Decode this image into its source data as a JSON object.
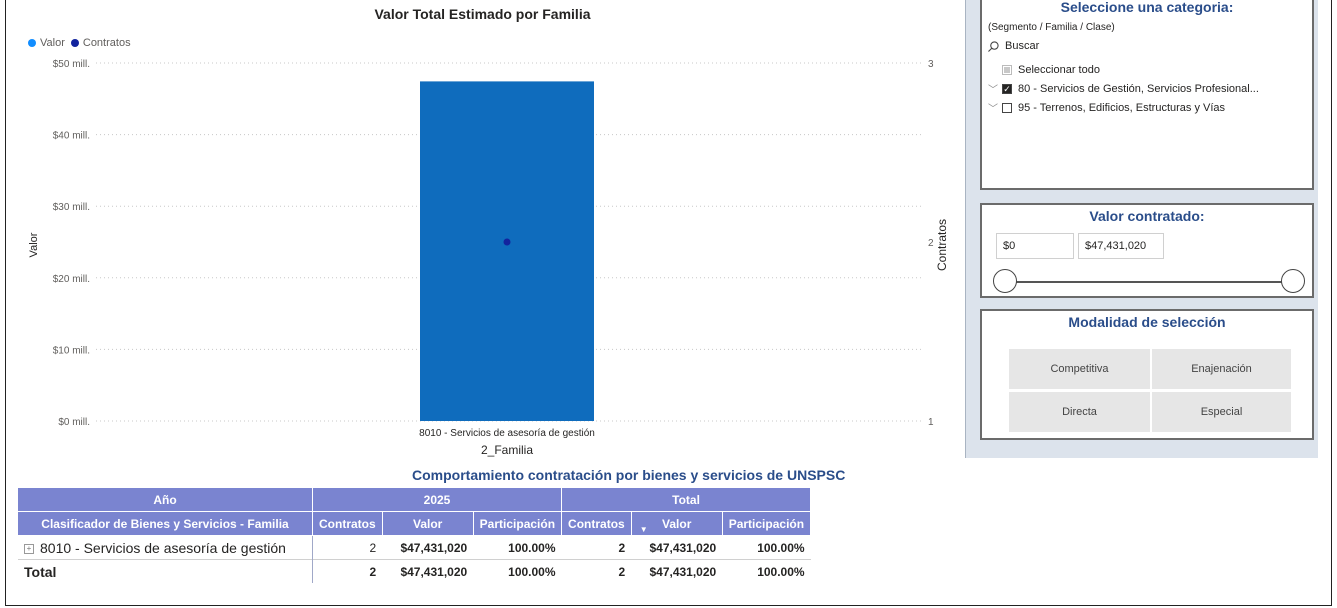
{
  "chart": {
    "title": "Valor Total Estimado por Familia",
    "legend": [
      {
        "label": "Valor",
        "color": "#118DFF"
      },
      {
        "label": "Contratos",
        "color": "#12239E"
      }
    ],
    "ylabel_left": "Valor",
    "ylabel_right": "Contratos",
    "xlabel": "2_Familia"
  },
  "chart_data": {
    "type": "bar",
    "title": "Valor Total Estimado por Familia",
    "xlabel": "2_Familia",
    "ylabel": "Valor",
    "y2label": "Contratos",
    "categories": [
      "8010 - Servicios de asesoría de gestión"
    ],
    "series": [
      {
        "name": "Valor",
        "type": "bar",
        "values": [
          47431020
        ],
        "color": "#0F6CBD"
      },
      {
        "name": "Contratos",
        "type": "scatter",
        "axis": "right",
        "values": [
          2
        ],
        "color": "#12239E"
      }
    ],
    "ylim": [
      0,
      50000000
    ],
    "y2lim": [
      1,
      3
    ],
    "yticks": [
      "$0 mill.",
      "$10 mill.",
      "$20 mill.",
      "$30 mill.",
      "$40 mill.",
      "$50 mill."
    ],
    "y2ticks": [
      "1",
      "2",
      "3"
    ],
    "grid": true,
    "legend_position": "top-left"
  },
  "category_filter": {
    "title": "Seleccione una categoria:",
    "subtitle": "(Segmento / Familia / Clase)",
    "search_placeholder": "Buscar",
    "items": [
      {
        "label": "Seleccionar todo",
        "state": "partial"
      },
      {
        "label": "80 - Servicios de Gestión, Servicios Profesional...",
        "state": "checked"
      },
      {
        "label": "95 - Terrenos, Edificios, Estructuras y Vías",
        "state": "unchecked"
      }
    ]
  },
  "value_filter": {
    "title": "Valor contratado:",
    "min": "$0",
    "max": "$47,431,020"
  },
  "modality_filter": {
    "title": "Modalidad de selección",
    "options": [
      "Competitiva",
      "Enajenación",
      "Directa",
      "Especial"
    ]
  },
  "table": {
    "title": "Comportamiento contratación por bienes y servicios de UNSPSC",
    "header_year": "Año",
    "year": "2025",
    "total_header": "Total",
    "row_header": "Clasificador de Bienes y Servicios - Familia",
    "columns": [
      "Contratos",
      "Valor",
      "Participación",
      "Contratos",
      "Valor",
      "Participación"
    ],
    "rows": [
      {
        "label": "8010 - Servicios de asesoría de gestión",
        "cells": [
          "2",
          "$47,431,020",
          "100.00%",
          "2",
          "$47,431,020",
          "100.00%"
        ]
      }
    ],
    "total": {
      "label": "Total",
      "cells": [
        "2",
        "$47,431,020",
        "100.00%",
        "2",
        "$47,431,020",
        "100.00%"
      ]
    }
  }
}
